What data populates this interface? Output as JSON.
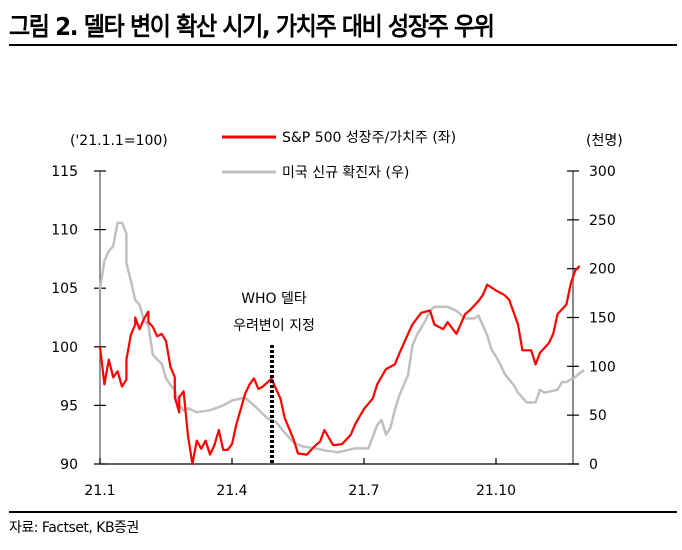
{
  "header": {
    "title": "그림 2. 델타 변이 확산 시기, 가치주 대비 성장주 우위"
  },
  "footer": {
    "source": "자료: Factset, KB증권"
  },
  "chart_data": {
    "type": "line",
    "title": "그림 2. 델타 변이 확산 시기, 가치주 대비 성장주 우위",
    "left_axis": {
      "unit_label": "('21.1.1=100)",
      "ticks": [
        "115",
        "110",
        "105",
        "100",
        "95",
        "90"
      ],
      "range": [
        90,
        115
      ]
    },
    "right_axis": {
      "unit_label": "(천명)",
      "ticks": [
        "300",
        "250",
        "200",
        "150",
        "100",
        "50",
        "0"
      ],
      "range": [
        0,
        300
      ]
    },
    "x_axis": {
      "ticks": [
        "21.1",
        "21.4",
        "21.7",
        "21.10"
      ],
      "range": [
        "2021-01-01",
        "2021-11-30"
      ]
    },
    "legend": {
      "position": "top",
      "entries": [
        {
          "label": "S&P 500 성장주/가치주 (좌)",
          "color": "#ff0000"
        },
        {
          "label": "미국 신규 확진자 (우)",
          "color": "#c0c0c0"
        }
      ]
    },
    "annotation": {
      "line1": "WHO 델타",
      "line2": "우려변이 지정",
      "x_month": 5.1
    },
    "grid": false,
    "series": [
      {
        "name": "S&P 500 성장주/가치주 (좌)",
        "axis": "left",
        "color": "#ff0000",
        "x_months": [
          1.0,
          1.1,
          1.2,
          1.3,
          1.4,
          1.5,
          1.6,
          1.6,
          1.7,
          1.8,
          1.8,
          1.9,
          2.0,
          2.1,
          2.1,
          2.2,
          2.3,
          2.4,
          2.5,
          2.6,
          2.7,
          2.7,
          2.8,
          2.8,
          2.9,
          3.0,
          3.1,
          3.2,
          3.3,
          3.4,
          3.5,
          3.6,
          3.7,
          3.8,
          3.9,
          4.0,
          4.1,
          4.2,
          4.3,
          4.4,
          4.5,
          4.6,
          4.7,
          4.9,
          5.0,
          5.1,
          5.2,
          5.3,
          5.4,
          5.5,
          5.7,
          5.9,
          6.0,
          6.1,
          6.3,
          6.5,
          6.7,
          6.8,
          7.0,
          7.2,
          7.3,
          7.5,
          7.7,
          7.8,
          8.0,
          8.1,
          8.3,
          8.5,
          8.6,
          8.8,
          8.9,
          9.1,
          9.3,
          9.4,
          9.6,
          9.7,
          9.8,
          10.0,
          10.2,
          10.3,
          10.5,
          10.6,
          10.8,
          10.9,
          11.0,
          11.2,
          11.3,
          11.4,
          11.6,
          11.7,
          11.8,
          11.9
        ],
        "values": [
          100.0,
          96.8,
          98.9,
          97.4,
          97.9,
          96.6,
          97.2,
          98.9,
          101.0,
          101.9,
          102.5,
          101.5,
          102.4,
          103.0,
          102.1,
          101.7,
          100.9,
          101.1,
          100.5,
          98.3,
          97.4,
          95.7,
          94.4,
          95.7,
          96.2,
          92.4,
          90.0,
          92.0,
          91.3,
          92.0,
          90.8,
          91.6,
          92.9,
          91.2,
          91.2,
          91.7,
          93.4,
          94.7,
          96.0,
          96.8,
          97.3,
          96.4,
          96.6,
          97.3,
          96.4,
          95.6,
          93.9,
          93.0,
          92.1,
          90.9,
          90.8,
          91.6,
          91.9,
          92.9,
          91.6,
          91.7,
          92.5,
          93.4,
          94.7,
          95.6,
          96.8,
          98.1,
          98.5,
          99.4,
          101.1,
          101.9,
          102.9,
          103.1,
          101.9,
          101.5,
          102.1,
          101.1,
          102.8,
          103.1,
          103.9,
          104.4,
          105.3,
          104.8,
          104.4,
          104.0,
          101.9,
          99.7,
          99.7,
          98.5,
          99.5,
          100.3,
          101.1,
          102.8,
          103.6,
          105.4,
          106.5,
          106.9
        ]
      },
      {
        "name": "미국 신규 확진자 (우)",
        "axis": "right",
        "color": "#c0c0c0",
        "x_months": [
          1.0,
          1.1,
          1.2,
          1.3,
          1.4,
          1.5,
          1.6,
          1.6,
          1.7,
          1.8,
          1.9,
          2.0,
          2.1,
          2.2,
          2.3,
          2.4,
          2.5,
          2.6,
          2.7,
          2.8,
          2.9,
          3.0,
          3.2,
          3.5,
          3.8,
          4.0,
          4.3,
          4.5,
          4.8,
          5.0,
          5.2,
          5.4,
          5.6,
          5.9,
          6.1,
          6.4,
          6.8,
          7.1,
          7.3,
          7.4,
          7.5,
          7.6,
          7.7,
          7.8,
          8.0,
          8.1,
          8.2,
          8.4,
          8.5,
          8.6,
          8.9,
          9.1,
          9.3,
          9.5,
          9.6,
          9.8,
          9.9,
          10.0,
          10.1,
          10.2,
          10.4,
          10.5,
          10.7,
          10.9,
          11.0,
          11.1,
          11.4,
          11.5,
          11.6,
          11.8,
          11.9,
          12.0
        ],
        "values": [
          179,
          208,
          218,
          223,
          247,
          247,
          236,
          206,
          188,
          168,
          163,
          147,
          142,
          112,
          107,
          103,
          88,
          81,
          76,
          60,
          55,
          57,
          53,
          55,
          60,
          65,
          68,
          60,
          47,
          43,
          32,
          22,
          18,
          16,
          14,
          12,
          16,
          16,
          40,
          45,
          30,
          37,
          55,
          70,
          91,
          121,
          132,
          147,
          157,
          161,
          161,
          157,
          149,
          149,
          152,
          132,
          117,
          110,
          102,
          92,
          81,
          73,
          63,
          63,
          76,
          73,
          76,
          84,
          84,
          89,
          93,
          96
        ]
      }
    ]
  }
}
